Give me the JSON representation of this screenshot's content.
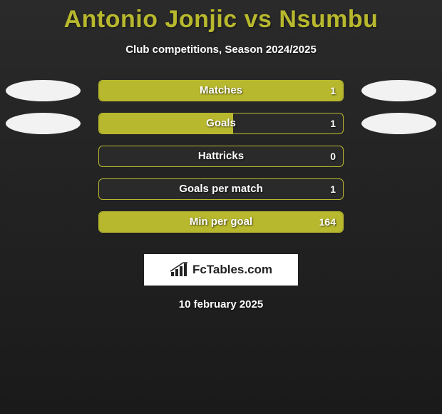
{
  "header": {
    "title": "Antonio Jonjic vs Nsumbu",
    "subtitle": "Club competitions, Season 2024/2025"
  },
  "chart": {
    "track_width": 344,
    "rows": [
      {
        "label": "Matches",
        "value": "1",
        "fill_pct": 100,
        "left_ellipse_color": "#f2f2f2",
        "right_ellipse_color": "#f2f2f2",
        "show_ellipses": true
      },
      {
        "label": "Goals",
        "value": "1",
        "fill_pct": 55,
        "left_ellipse_color": "#f2f2f2",
        "right_ellipse_color": "#f2f2f2",
        "show_ellipses": true
      },
      {
        "label": "Hattricks",
        "value": "0",
        "fill_pct": 0,
        "show_ellipses": false
      },
      {
        "label": "Goals per match",
        "value": "1",
        "fill_pct": 0,
        "show_ellipses": false
      },
      {
        "label": "Min per goal",
        "value": "164",
        "fill_pct": 100,
        "show_ellipses": false
      }
    ],
    "bar_color": "#b8b82e",
    "border_color": "#b8b82e",
    "track_bg": "#2a2a2a"
  },
  "brand": {
    "text": "FcTables.com"
  },
  "footer": {
    "date": "10 february 2025"
  }
}
